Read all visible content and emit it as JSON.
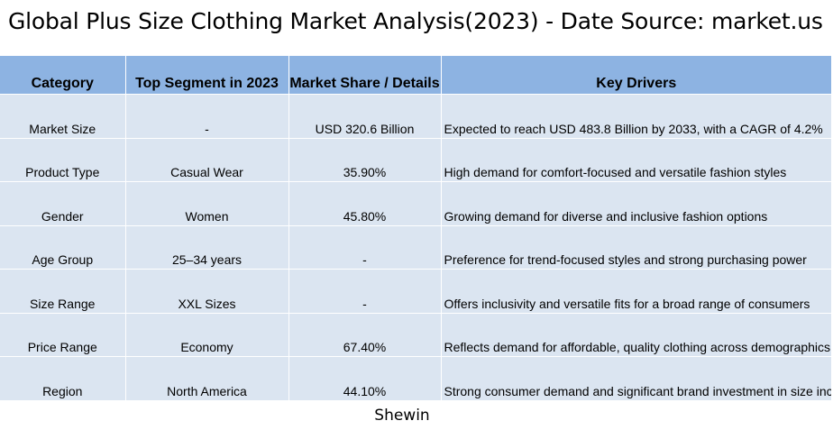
{
  "title": "Global Plus Size Clothing Market Analysis(2023) - Date Source: market.us",
  "table": {
    "headers": [
      "Category",
      "Top Segment in 2023",
      "Market Share / Details",
      "Key Drivers"
    ],
    "rows": [
      [
        "Market Size",
        "-",
        "USD 320.6 Billion",
        "Expected to reach USD 483.8 Billion by 2033, with a CAGR of 4.2%"
      ],
      [
        "Product Type",
        "Casual Wear",
        "35.90%",
        "High demand for comfort-focused and versatile fashion styles"
      ],
      [
        "Gender",
        "Women",
        "45.80%",
        "Growing demand for diverse and inclusive fashion options"
      ],
      [
        "Age Group",
        "25–34 years",
        "-",
        "Preference for trend-focused styles and strong purchasing power"
      ],
      [
        "Size Range",
        "XXL Sizes",
        "-",
        "Offers inclusivity and versatile fits for a broad range of consumers"
      ],
      [
        "Price Range",
        "Economy",
        "67.40%",
        "Reflects demand for affordable, quality clothing across demographics"
      ],
      [
        "Region",
        "North America",
        "44.10%",
        "Strong consumer demand and significant brand investment in size inclusivity"
      ]
    ]
  },
  "caption": "Shewin"
}
